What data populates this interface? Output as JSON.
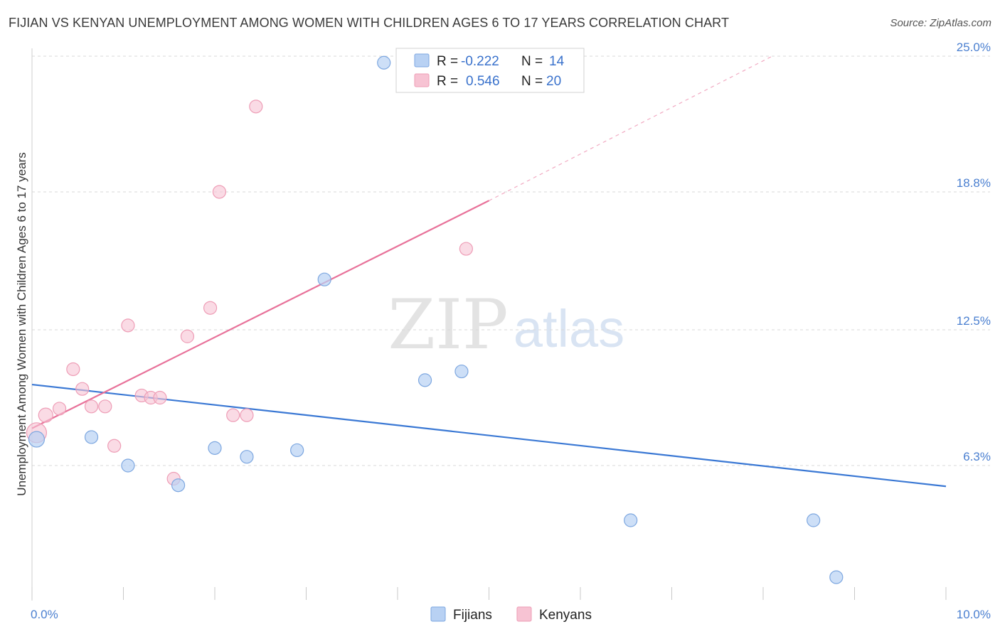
{
  "title": "FIJIAN VS KENYAN UNEMPLOYMENT AMONG WOMEN WITH CHILDREN AGES 6 TO 17 YEARS CORRELATION CHART",
  "source": "Source: ZipAtlas.com",
  "watermark": {
    "zip": "ZIP",
    "atlas": "atlas"
  },
  "colors": {
    "fijians_fill": "#b8d1f3",
    "fijians_stroke": "#7da7e0",
    "fijians_line": "#3a78d4",
    "kenyans_fill": "#f7c3d3",
    "kenyans_stroke": "#ee9db6",
    "kenyans_line": "#e8729a",
    "grid": "#d9d9d9",
    "tick_text": "#4a7fd0"
  },
  "legend": {
    "rows": [
      {
        "r_label": "R =",
        "r_value": "-0.222",
        "n_label": "N =",
        "n_value": "14"
      },
      {
        "r_label": "R =",
        "r_value": "0.546",
        "n_label": "N =",
        "n_value": "20"
      }
    ]
  },
  "chart_data": {
    "type": "scatter",
    "title": "FIJIAN VS KENYAN UNEMPLOYMENT AMONG WOMEN WITH CHILDREN AGES 6 TO 17 YEARS CORRELATION CHART",
    "xlabel": "",
    "ylabel": "Unemployment Among Women with Children Ages 6 to 17 years",
    "xlim": [
      0,
      10
    ],
    "ylim": [
      0,
      25.6
    ],
    "x_tick_labels": [
      {
        "value": 0,
        "label": "0.0%"
      },
      {
        "value": 10,
        "label": "10.0%"
      }
    ],
    "y_ticks": [
      {
        "value": 6.3,
        "label": "6.3%"
      },
      {
        "value": 12.5,
        "label": "12.5%"
      },
      {
        "value": 18.8,
        "label": "18.8%"
      },
      {
        "value": 25.0,
        "label": "25.0%"
      }
    ],
    "x_minor_ticks": [
      1,
      2,
      3,
      4,
      5,
      6,
      7,
      8,
      9,
      10
    ],
    "grid": true,
    "legend_position": "top-center",
    "series": [
      {
        "name": "Fijians",
        "r": -0.222,
        "n": 14,
        "points": [
          {
            "x": 0.05,
            "y": 7.5,
            "size": 11
          },
          {
            "x": 0.65,
            "y": 7.6,
            "size": 9
          },
          {
            "x": 1.05,
            "y": 6.3,
            "size": 9
          },
          {
            "x": 1.6,
            "y": 5.4,
            "size": 9
          },
          {
            "x": 2.0,
            "y": 7.1,
            "size": 9
          },
          {
            "x": 2.35,
            "y": 6.7,
            "size": 9
          },
          {
            "x": 2.9,
            "y": 7.0,
            "size": 9
          },
          {
            "x": 3.2,
            "y": 14.8,
            "size": 9
          },
          {
            "x": 3.85,
            "y": 24.7,
            "size": 9
          },
          {
            "x": 4.3,
            "y": 10.2,
            "size": 9
          },
          {
            "x": 4.7,
            "y": 10.6,
            "size": 9
          },
          {
            "x": 6.55,
            "y": 3.8,
            "size": 9
          },
          {
            "x": 8.55,
            "y": 3.8,
            "size": 9
          },
          {
            "x": 8.8,
            "y": 1.2,
            "size": 9
          }
        ],
        "trend": {
          "x_start": 0,
          "y_start": 10.0,
          "x_end": 10,
          "y_end": 5.35
        }
      },
      {
        "name": "Kenyans",
        "r": 0.546,
        "n": 20,
        "points": [
          {
            "x": 0.05,
            "y": 7.8,
            "size": 14
          },
          {
            "x": 0.15,
            "y": 8.6,
            "size": 10
          },
          {
            "x": 0.3,
            "y": 8.9,
            "size": 9
          },
          {
            "x": 0.45,
            "y": 10.7,
            "size": 9
          },
          {
            "x": 0.55,
            "y": 9.8,
            "size": 9
          },
          {
            "x": 0.65,
            "y": 9.0,
            "size": 9
          },
          {
            "x": 0.8,
            "y": 9.0,
            "size": 9
          },
          {
            "x": 0.9,
            "y": 7.2,
            "size": 9
          },
          {
            "x": 1.05,
            "y": 12.7,
            "size": 9
          },
          {
            "x": 1.2,
            "y": 9.5,
            "size": 9
          },
          {
            "x": 1.3,
            "y": 9.4,
            "size": 9
          },
          {
            "x": 1.4,
            "y": 9.4,
            "size": 9
          },
          {
            "x": 1.55,
            "y": 5.7,
            "size": 9
          },
          {
            "x": 1.7,
            "y": 12.2,
            "size": 9
          },
          {
            "x": 1.95,
            "y": 13.5,
            "size": 9
          },
          {
            "x": 2.05,
            "y": 18.8,
            "size": 9
          },
          {
            "x": 2.2,
            "y": 8.6,
            "size": 9
          },
          {
            "x": 2.35,
            "y": 8.6,
            "size": 9
          },
          {
            "x": 2.45,
            "y": 22.7,
            "size": 9
          },
          {
            "x": 4.75,
            "y": 16.2,
            "size": 9
          }
        ],
        "trend": {
          "x_start": 0,
          "y_start": 8.0,
          "x_end": 5.0,
          "y_end": 18.4,
          "dashed_to_x": 8.1,
          "dashed_to_y": 25.0
        }
      }
    ]
  }
}
